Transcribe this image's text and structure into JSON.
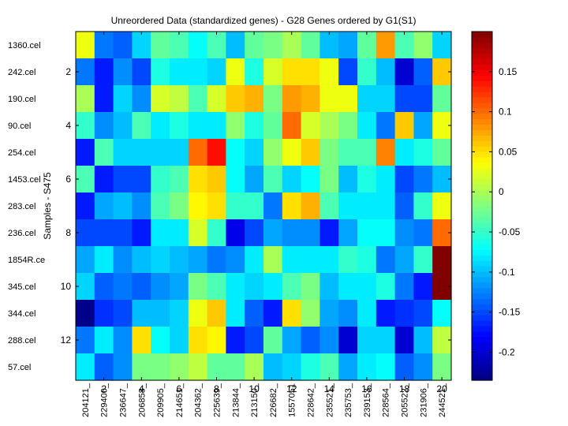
{
  "chart_data": [
    {
      "type": "heatmap",
      "title": "Unreordered Data (standardized genes) - G28 Genes ordered by G1(S1)",
      "ylabel": "Samples - S475",
      "xlabel": "",
      "row_labels": [
        "1360.cel",
        "242.cel",
        "190.cel",
        "90.cel",
        "254.cel",
        "1453.cel",
        "283.cel",
        "236.cel",
        "1854R.ce",
        "345.cel",
        "344.cel",
        "288.cel",
        "57.cel"
      ],
      "row_index_ticks": [
        2,
        4,
        6,
        8,
        10,
        12
      ],
      "col_labels": [
        "204121_",
        "229400_",
        "236647_",
        "206858_",
        "209905_",
        "214651_",
        "204362_",
        "225639_",
        "213844_",
        "213150_",
        "226682_",
        "1557051",
        "228642_",
        "235521_",
        "235753_",
        "239153_",
        "228564_",
        "205522_",
        "231906_",
        "244521_"
      ],
      "col_index_ticks": [
        2,
        4,
        6,
        8,
        10,
        12,
        14,
        16,
        18,
        20
      ],
      "colormap": "jet",
      "clim": [
        -0.235,
        0.2
      ],
      "values": [
        [
          0.03,
          -0.13,
          -0.14,
          -0.09,
          -0.03,
          -0.04,
          -0.07,
          -0.04,
          -0.1,
          -0.03,
          -0.02,
          0.0,
          -0.03,
          -0.1,
          -0.11,
          -0.03,
          0.08,
          -0.04,
          -0.01,
          -0.09
        ],
        [
          -0.13,
          -0.17,
          -0.12,
          -0.15,
          -0.06,
          -0.08,
          -0.08,
          -0.09,
          0.03,
          -0.06,
          0.02,
          0.05,
          0.05,
          0.03,
          -0.15,
          -0.05,
          -0.1,
          -0.2,
          -0.14,
          0.06
        ],
        [
          0.0,
          -0.17,
          -0.09,
          -0.12,
          0.02,
          0.01,
          -0.04,
          0.02,
          0.06,
          0.07,
          -0.02,
          0.08,
          0.07,
          0.03,
          0.03,
          -0.09,
          -0.09,
          -0.15,
          -0.15,
          -0.03
        ],
        [
          -0.05,
          -0.12,
          -0.1,
          -0.04,
          -0.08,
          -0.06,
          -0.08,
          -0.08,
          -0.01,
          -0.06,
          -0.03,
          0.1,
          0.02,
          0.0,
          -0.02,
          -0.08,
          -0.13,
          0.06,
          -0.11,
          0.03
        ],
        [
          -0.17,
          -0.04,
          -0.09,
          -0.09,
          -0.09,
          -0.09,
          0.1,
          0.14,
          -0.07,
          -0.09,
          -0.01,
          0.03,
          0.06,
          -0.02,
          -0.04,
          -0.04,
          0.09,
          -0.08,
          -0.06,
          -0.03
        ],
        [
          -0.04,
          -0.17,
          -0.15,
          -0.15,
          -0.05,
          -0.04,
          0.05,
          0.06,
          -0.07,
          -0.11,
          -0.04,
          -0.09,
          -0.07,
          -0.02,
          -0.1,
          -0.06,
          -0.08,
          -0.15,
          -0.13,
          -0.1
        ],
        [
          -0.17,
          -0.11,
          -0.1,
          -0.12,
          -0.04,
          -0.02,
          0.04,
          0.05,
          -0.05,
          -0.05,
          -0.13,
          0.05,
          0.07,
          -0.04,
          -0.08,
          -0.08,
          -0.08,
          -0.14,
          -0.05,
          0.03
        ],
        [
          -0.15,
          -0.15,
          -0.15,
          -0.17,
          -0.08,
          -0.08,
          0.02,
          -0.05,
          -0.19,
          -0.15,
          -0.11,
          -0.12,
          -0.12,
          -0.17,
          -0.11,
          -0.07,
          -0.07,
          -0.12,
          -0.13,
          0.1
        ],
        [
          -0.11,
          -0.08,
          -0.12,
          -0.1,
          -0.09,
          -0.1,
          -0.11,
          -0.13,
          -0.12,
          -0.08,
          0.0,
          -0.08,
          -0.08,
          -0.08,
          -0.05,
          -0.06,
          -0.13,
          -0.11,
          -0.05,
          0.2
        ],
        [
          -0.09,
          -0.14,
          -0.13,
          -0.14,
          -0.12,
          -0.11,
          -0.02,
          -0.04,
          -0.08,
          -0.09,
          -0.08,
          -0.04,
          -0.02,
          -0.1,
          -0.08,
          -0.08,
          -0.06,
          -0.13,
          -0.17,
          0.2
        ],
        [
          -0.23,
          -0.16,
          -0.15,
          -0.1,
          -0.1,
          -0.09,
          0.03,
          0.06,
          -0.08,
          -0.14,
          -0.17,
          0.05,
          -0.01,
          -0.11,
          -0.12,
          -0.08,
          -0.17,
          -0.16,
          -0.15,
          -0.07
        ],
        [
          -0.13,
          -0.08,
          -0.12,
          0.05,
          -0.07,
          -0.09,
          0.05,
          0.04,
          -0.17,
          -0.15,
          -0.03,
          -0.11,
          -0.14,
          -0.12,
          -0.2,
          -0.09,
          -0.09,
          -0.2,
          -0.1,
          0.01
        ],
        [
          -0.08,
          -0.14,
          -0.12,
          -0.02,
          -0.02,
          -0.01,
          0.01,
          -0.03,
          -0.03,
          0.0,
          -0.1,
          -0.09,
          -0.06,
          -0.04,
          -0.11,
          -0.08,
          -0.07,
          -0.14,
          -0.12,
          -0.02
        ]
      ],
      "colorbar": {
        "ticks": [
          -0.2,
          -0.15,
          -0.1,
          -0.05,
          0,
          0.05,
          0.1,
          0.15
        ],
        "tick_labels": [
          "-0.2",
          "-0.15",
          "-0.1",
          "-0.05",
          "0",
          "0.05",
          "0.1",
          "0.15"
        ]
      }
    }
  ]
}
